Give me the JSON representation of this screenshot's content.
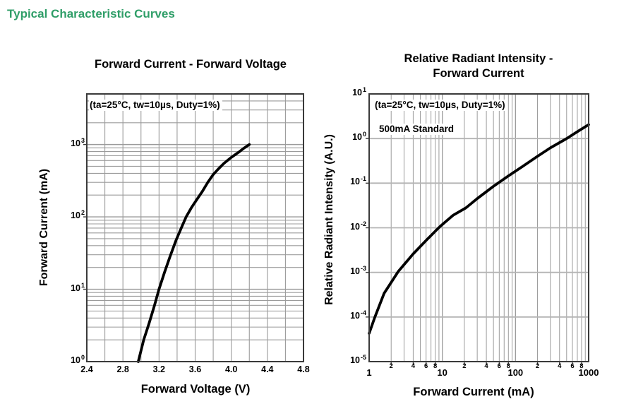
{
  "page_title": "Typical Characteristic Curves",
  "colors": {
    "title_green": "#2f9e68",
    "grid": "#9b9b9b",
    "grid_major_right": "#b4b4b4",
    "frame": "#3a3a3a",
    "curve": "#000000"
  },
  "chart_data": [
    {
      "type": "line",
      "title": "Forward Current - Forward Voltage",
      "xlabel": "Forward Voltage (V)",
      "ylabel": "Forward Current (mA)",
      "annotation": "(ta=25°C, tw=10µs, Duty=1%)",
      "x_scale": "linear",
      "xlim": [
        2.4,
        4.8
      ],
      "x_minor_step": 0.2,
      "x_tick_labels": [
        "2.4",
        "2.8",
        "3.2",
        "3.6",
        "4.0",
        "4.4",
        "4.8"
      ],
      "y_scale": "log",
      "ylim": [
        1,
        5000
      ],
      "y_tick_exponents": [
        0,
        1,
        2,
        3
      ],
      "grid": "x-minor-0.2, y-log-minors",
      "legend": "none",
      "points": [
        [
          2.97,
          1
        ],
        [
          3.03,
          2
        ],
        [
          3.09,
          3.4
        ],
        [
          3.15,
          6
        ],
        [
          3.2,
          10
        ],
        [
          3.26,
          17
        ],
        [
          3.32,
          28
        ],
        [
          3.39,
          48
        ],
        [
          3.45,
          72
        ],
        [
          3.5,
          100
        ],
        [
          3.56,
          135
        ],
        [
          3.62,
          175
        ],
        [
          3.68,
          225
        ],
        [
          3.74,
          300
        ],
        [
          3.8,
          385
        ],
        [
          3.85,
          450
        ],
        [
          3.92,
          550
        ],
        [
          4.0,
          665
        ],
        [
          4.08,
          780
        ],
        [
          4.14,
          890
        ],
        [
          4.2,
          1000
        ]
      ]
    },
    {
      "type": "line",
      "title": "Relative Radiant Intensity - Forward Current",
      "title_lines": [
        "Relative Radiant Intensity -",
        "Forward Current"
      ],
      "xlabel": "Forward Current (mA)",
      "ylabel": "Relative Radiant Intensity (A.U.)",
      "annotation": "(ta=25°C, tw=10µs, Duty=1%)",
      "annotation2": "500mA Standard",
      "x_scale": "log",
      "xlim": [
        1,
        1000
      ],
      "x_decade_labels": [
        "1",
        "10",
        "100",
        "1000"
      ],
      "x_minor_labels": [
        "2",
        "4",
        "6",
        "8"
      ],
      "y_scale": "log",
      "ylim": [
        1e-05,
        10
      ],
      "y_tick_exponents": [
        1,
        0,
        -1,
        -2,
        -3,
        -4,
        -5
      ],
      "grid": "x-log-minors, y-log-majors-only",
      "legend": "none",
      "points": [
        [
          1,
          4.3e-05
        ],
        [
          1.2,
          0.0001
        ],
        [
          1.6,
          0.00034
        ],
        [
          2.5,
          0.00105
        ],
        [
          4,
          0.0026
        ],
        [
          6,
          0.0052
        ],
        [
          9.2,
          0.0105
        ],
        [
          14,
          0.019
        ],
        [
          21,
          0.028
        ],
        [
          30,
          0.045
        ],
        [
          50,
          0.085
        ],
        [
          80,
          0.145
        ],
        [
          124,
          0.235
        ],
        [
          200,
          0.4
        ],
        [
          300,
          0.62
        ],
        [
          500,
          1.0
        ],
        [
          700,
          1.42
        ],
        [
          1000,
          2.05
        ]
      ]
    }
  ]
}
